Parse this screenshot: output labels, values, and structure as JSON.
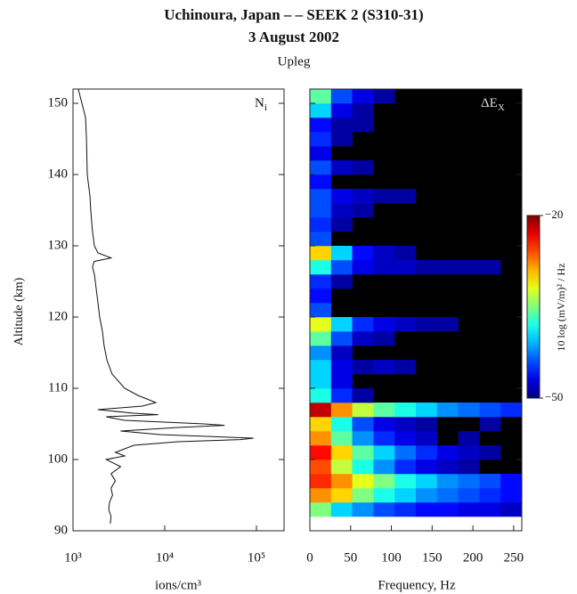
{
  "chart_data": [
    {
      "type": "line",
      "title": "Uchinoura, Japan – – SEEK 2 (S310-31)",
      "subtitle": "3 August 2002",
      "annotation": "Upleg",
      "panel_label": "N",
      "panel_label_sub": "i",
      "ylabel": "Altitude (km)",
      "xlabel": "ions/cm³",
      "log_x": true,
      "color": "#111111",
      "xlim": [
        1000,
        200000
      ],
      "xticks": [
        {
          "value": 1000,
          "label": "10³"
        },
        {
          "value": 10000,
          "label": "10⁴"
        },
        {
          "value": 100000,
          "label": "10⁵"
        }
      ],
      "ylim": [
        90,
        152
      ],
      "yticks": [
        90,
        100,
        110,
        120,
        130,
        140,
        150
      ],
      "y": [
        152,
        150,
        148,
        145,
        140,
        137,
        135,
        132,
        130,
        129,
        128.3,
        127.8,
        127,
        126,
        124,
        122,
        120,
        118,
        116,
        114,
        112,
        110,
        109,
        108,
        107.5,
        107,
        106.5,
        106.3,
        106,
        105.5,
        105,
        104.8,
        104.5,
        104,
        103.5,
        103,
        102.8,
        102.5,
        102,
        101,
        100.5,
        100,
        99,
        98,
        97,
        96,
        95,
        94,
        93,
        92,
        91
      ],
      "values": [
        1140,
        1250,
        1370,
        1400,
        1430,
        1530,
        1560,
        1630,
        1710,
        1870,
        2600,
        1700,
        1630,
        1710,
        1790,
        1870,
        1950,
        2090,
        2180,
        2340,
        2670,
        3660,
        5100,
        8000,
        5700,
        1870,
        4600,
        8500,
        2300,
        3660,
        27000,
        45000,
        14000,
        3300,
        8900,
        93000,
        67000,
        14000,
        4600,
        2900,
        3660,
        2300,
        3300,
        2600,
        2900,
        2600,
        2700,
        2500,
        2450,
        2600,
        2550
      ]
    },
    {
      "type": "heatmap",
      "panel_label": "ΔE",
      "panel_label_sub": "X",
      "xlabel": "Frequency, Hz",
      "xlim": [
        0,
        260
      ],
      "xticks": [
        0,
        50,
        100,
        150,
        200,
        250
      ],
      "ylim": [
        90,
        152
      ],
      "yticks": [
        90,
        100,
        110,
        120,
        130,
        140,
        150
      ],
      "colorscale": "jet",
      "zlim": [
        -50,
        -20
      ],
      "zticks": [
        {
          "value": -50,
          "label": "−50"
        },
        {
          "value": -20,
          "label": "−20"
        }
      ],
      "zlabel": "10 log (mV/m)² / Hz",
      "x_bins": [
        0,
        26,
        52,
        78,
        104,
        130,
        156,
        182,
        208,
        234,
        260
      ],
      "y_bins": [
        92,
        94,
        96,
        98,
        100,
        102,
        104,
        106,
        108,
        110,
        112,
        114,
        116,
        118,
        120,
        122,
        124,
        126,
        128,
        130,
        132,
        134,
        136,
        138,
        140,
        142,
        144,
        146,
        148,
        150,
        152
      ],
      "values": [
        [
          -35,
          -40,
          -42,
          -44,
          -45,
          -46,
          -46,
          -47,
          -47,
          -48
        ],
        [
          -28,
          -30,
          -35,
          -38,
          -40,
          -42,
          -43,
          -44,
          -45,
          -46
        ],
        [
          -25,
          -28,
          -32,
          -35,
          -38,
          -40,
          -42,
          -43,
          -44,
          -46
        ],
        [
          -26,
          -33,
          -38,
          -42,
          -45,
          -47,
          -48,
          -49,
          null,
          null
        ],
        [
          -24,
          -30,
          -36,
          -40,
          -43,
          -45,
          -47,
          -48,
          -49,
          null
        ],
        [
          -28,
          -36,
          -42,
          -45,
          -47,
          -48,
          null,
          -49,
          null,
          null
        ],
        [
          -30,
          -38,
          -44,
          -47,
          -48,
          -49,
          null,
          null,
          -49,
          null
        ],
        [
          -22,
          -28,
          -33,
          -36,
          -38,
          -40,
          -42,
          -43,
          -44,
          -45
        ],
        [
          -38,
          -45,
          -49,
          null,
          null,
          null,
          null,
          null,
          null,
          null
        ],
        [
          -40,
          -47,
          null,
          null,
          null,
          null,
          null,
          null,
          null,
          null
        ],
        [
          -40,
          -47,
          -49,
          -48,
          -49,
          null,
          null,
          null,
          null,
          null
        ],
        [
          -42,
          -48,
          null,
          null,
          null,
          null,
          null,
          null,
          null,
          null
        ],
        [
          -36,
          -44,
          -48,
          -49,
          null,
          null,
          null,
          null,
          null,
          null
        ],
        [
          -32,
          -40,
          -45,
          -47,
          -48,
          -49,
          -49,
          null,
          null,
          null
        ],
        [
          -44,
          null,
          null,
          null,
          null,
          null,
          null,
          null,
          null,
          null
        ],
        [
          -46,
          null,
          null,
          null,
          null,
          null,
          null,
          null,
          null,
          null
        ],
        [
          -45,
          -49,
          null,
          null,
          null,
          null,
          null,
          null,
          null,
          null
        ],
        [
          -38,
          -44,
          -47,
          -48,
          -48,
          -49,
          -49,
          -49,
          -49,
          null
        ],
        [
          -30,
          -40,
          -46,
          -48,
          -49,
          null,
          null,
          null,
          null,
          null
        ],
        [
          -44,
          null,
          null,
          null,
          null,
          null,
          null,
          null,
          null,
          null
        ],
        [
          -45,
          -49,
          null,
          null,
          null,
          null,
          null,
          null,
          null,
          null
        ],
        [
          -44,
          -48,
          -49,
          null,
          null,
          null,
          null,
          null,
          null,
          null
        ],
        [
          -44,
          -47,
          -48,
          -49,
          -49,
          null,
          null,
          null,
          null,
          null
        ],
        [
          -46,
          null,
          null,
          null,
          null,
          null,
          null,
          null,
          null,
          null
        ],
        [
          -44,
          -48,
          -49,
          null,
          null,
          null,
          null,
          null,
          null,
          null
        ],
        [
          -47,
          null,
          null,
          null,
          null,
          null,
          null,
          null,
          null,
          null
        ],
        [
          -45,
          -49,
          null,
          null,
          null,
          null,
          null,
          null,
          null,
          null
        ],
        [
          -46,
          -49,
          -49,
          null,
          null,
          null,
          null,
          null,
          null,
          null
        ],
        [
          -40,
          -47,
          -49,
          null,
          null,
          null,
          null,
          null,
          null,
          null
        ],
        [
          -36,
          -44,
          -47,
          -49,
          null,
          null,
          null,
          null,
          null,
          null
        ]
      ]
    }
  ]
}
